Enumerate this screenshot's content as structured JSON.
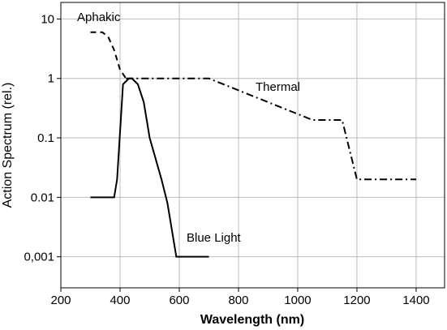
{
  "chart_data": {
    "type": "line",
    "xlabel": "Wavelength (nm)",
    "ylabel": "Action Spectrum (rel.)",
    "xlim": [
      200,
      1496
    ],
    "xticks": [
      200,
      400,
      600,
      800,
      1000,
      1200,
      1400
    ],
    "ylim": [
      0.0003,
      19
    ],
    "yscale": "log",
    "yticks": [
      10,
      1,
      0.1,
      0.01,
      {
        "value": 0.001,
        "label": "0,001"
      }
    ],
    "grid": true,
    "series": [
      {
        "name": "Aphakic",
        "color": "#000000",
        "linestyle": "dashed",
        "x": [
          300,
          340,
          360,
          380,
          400,
          420
        ],
        "values": [
          6,
          6,
          5,
          3,
          1.4,
          1
        ]
      },
      {
        "name": "Thermal",
        "color": "#000000",
        "linestyle": "dashdot",
        "x": [
          420,
          700,
          1050,
          1150,
          1200,
          1400
        ],
        "values": [
          1,
          1,
          0.2,
          0.2,
          0.02,
          0.02
        ]
      },
      {
        "name": "Blue Light",
        "color": "#000000",
        "linestyle": "solid",
        "x": [
          300,
          380,
          390,
          410,
          430,
          440,
          460,
          480,
          500,
          540,
          560,
          590,
          700
        ],
        "values": [
          0.01,
          0.01,
          0.02,
          0.8,
          1,
          1,
          0.8,
          0.4,
          0.1,
          0.02,
          0.008,
          0.001,
          0.001
        ]
      }
    ]
  }
}
